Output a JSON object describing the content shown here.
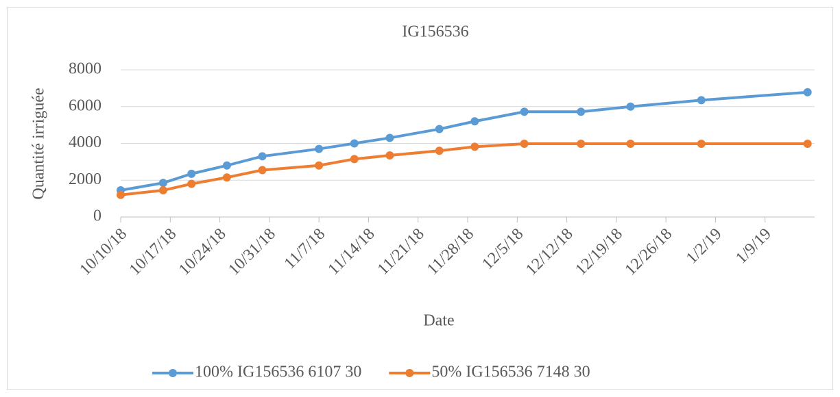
{
  "chart_data": {
    "type": "line",
    "title": "IG156536",
    "xlabel": "Date",
    "ylabel": "Quantité irriguée",
    "x": [
      "2018-10-10",
      "2018-10-16",
      "2018-10-20",
      "2018-10-25",
      "2018-10-30",
      "2018-11-07",
      "2018-11-12",
      "2018-11-17",
      "2018-11-24",
      "2018-11-29",
      "2018-12-06",
      "2018-12-14",
      "2018-12-21",
      "2018-12-31",
      "2019-01-15"
    ],
    "series": [
      {
        "name": "100% IG156536 6107 30",
        "color": "#5b9bd5",
        "values": [
          1450,
          1850,
          2350,
          2800,
          3300,
          3700,
          4000,
          4300,
          4780,
          5200,
          5720,
          5720,
          6000,
          6350,
          6780
        ]
      },
      {
        "name": "50% IG156536 7148 30",
        "color": "#ed7d31",
        "values": [
          1200,
          1450,
          1800,
          2150,
          2550,
          2800,
          3150,
          3350,
          3600,
          3820,
          3980,
          3980,
          3980,
          3980,
          3980
        ]
      }
    ],
    "xlim": [
      "2018-10-10",
      "2019-01-16"
    ],
    "xticks": [
      {
        "value": "2018-10-10",
        "label": "10/10/18"
      },
      {
        "value": "2018-10-17",
        "label": "10/17/18"
      },
      {
        "value": "2018-10-24",
        "label": "10/24/18"
      },
      {
        "value": "2018-10-31",
        "label": "10/31/18"
      },
      {
        "value": "2018-11-07",
        "label": "11/7/18"
      },
      {
        "value": "2018-11-14",
        "label": "11/14/18"
      },
      {
        "value": "2018-11-21",
        "label": "11/21/18"
      },
      {
        "value": "2018-11-28",
        "label": "11/28/18"
      },
      {
        "value": "2018-12-05",
        "label": "12/5/18"
      },
      {
        "value": "2018-12-12",
        "label": "12/12/18"
      },
      {
        "value": "2018-12-19",
        "label": "12/19/18"
      },
      {
        "value": "2018-12-26",
        "label": "12/26/18"
      },
      {
        "value": "2019-01-02",
        "label": "1/2/19"
      },
      {
        "value": "2019-01-09",
        "label": "1/9/19"
      }
    ],
    "ylim": [
      0,
      8000
    ],
    "yticks": [
      0,
      2000,
      4000,
      6000,
      8000
    ],
    "grid": true,
    "legend": "bottom"
  }
}
